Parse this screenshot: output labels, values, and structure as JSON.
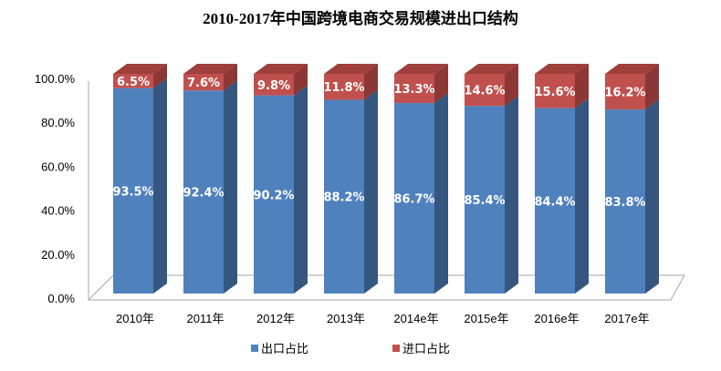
{
  "chart_data": {
    "type": "bar",
    "stacked": true,
    "title": "2010-2017年中国跨境电商交易规模进出口结构",
    "categories": [
      "2010年",
      "2011年",
      "2012年",
      "2013年",
      "2014e年",
      "2015e年",
      "2016e年",
      "2017e年"
    ],
    "series": [
      {
        "name": "出口占比",
        "color": "#4F81BD",
        "values": [
          93.5,
          92.4,
          90.2,
          88.2,
          86.7,
          85.4,
          84.4,
          83.8
        ]
      },
      {
        "name": "进口占比",
        "color": "#C0504D",
        "values": [
          6.5,
          7.6,
          9.8,
          11.8,
          13.3,
          14.6,
          15.6,
          16.2
        ]
      }
    ],
    "yticks": [
      "0.0%",
      "20.0%",
      "40.0%",
      "60.0%",
      "80.0%",
      "100.0%"
    ],
    "ylim": [
      0,
      100
    ],
    "legend": "bottom",
    "xlabel": "",
    "ylabel": ""
  }
}
